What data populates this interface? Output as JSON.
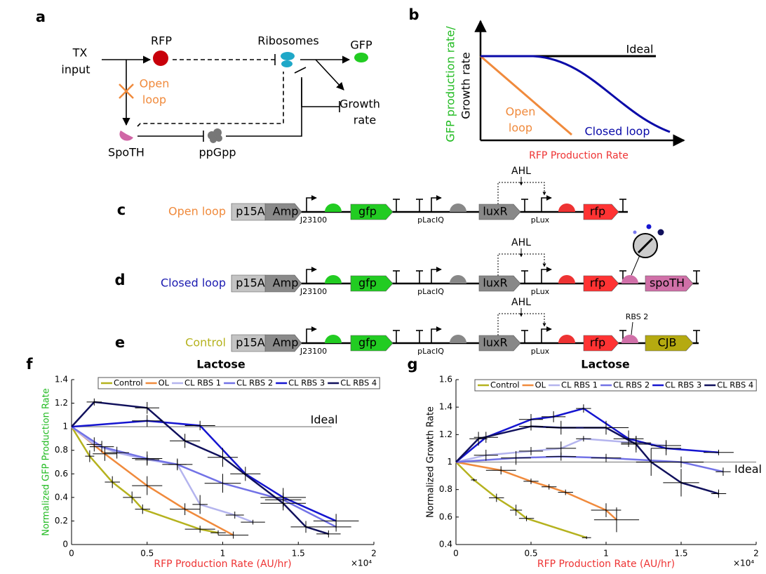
{
  "panel_labels": [
    "a",
    "b",
    "c",
    "d",
    "e",
    "f",
    "g"
  ],
  "diagram_a": {
    "input": [
      "TX",
      "input"
    ],
    "rfp": "RFP",
    "ribosomes": "Ribosomes",
    "gfp": "GFP",
    "open_loop": [
      "Open",
      "loop"
    ],
    "growth_rate": [
      "Growth",
      "rate"
    ],
    "spoth": "SpoTH",
    "ppgpp": "ppGpp"
  },
  "diagram_b": {
    "y_label": [
      "GFP production rate/",
      "Growth rate"
    ],
    "ideal": "Ideal",
    "open_loop": [
      "Open",
      "loop"
    ],
    "closed_loop": "Closed loop",
    "x_label": "RFP Production Rate"
  },
  "constructs": [
    {
      "label": "Open loop",
      "color": "#f08a3c",
      "p15a": "p15A",
      "amp": "Amp",
      "promoter1": "J23100",
      "gene1": "gfp",
      "promoter2": "pLacIQ",
      "gene2": "luxR",
      "inducer": "AHL",
      "promoter3": "pLux",
      "gene3": "rfp"
    },
    {
      "label": "Closed loop",
      "color": "#1a1ab0",
      "p15a": "p15A",
      "amp": "Amp",
      "promoter1": "J23100",
      "gene1": "gfp",
      "promoter2": "pLacIQ",
      "gene2": "luxR",
      "inducer": "AHL",
      "promoter3": "pLux",
      "gene3": "rfp",
      "gene4": "spoTH"
    },
    {
      "label": "Control",
      "color": "#b5b21e",
      "p15a": "p15A",
      "amp": "Amp",
      "promoter1": "J23100",
      "gene1": "gfp",
      "promoter2": "pLacIQ",
      "gene2": "luxR",
      "inducer": "AHL",
      "promoter3": "pLux",
      "gene3": "rfp",
      "rbs_label": "RBS 2",
      "gene4": "CJB"
    }
  ],
  "chart_data": [
    {
      "type": "line",
      "title": "Lactose",
      "x_label": "RFP Production Rate (AU/hr)",
      "y_label": "Normalized GFP Production Rate",
      "y_label_color": "#22bb22",
      "x_exponent": "×10⁴",
      "xlim": [
        0,
        2
      ],
      "xticks": [
        0,
        0.5,
        1,
        1.5,
        2
      ],
      "ylim": [
        0,
        1.4
      ],
      "yticks": [
        0,
        0.2,
        0.4,
        0.6,
        0.8,
        1,
        1.2,
        1.4
      ],
      "legend": "top",
      "ideal": {
        "label": "Ideal",
        "y": 1,
        "x_end": 1.72
      },
      "series": [
        {
          "name": "Control",
          "color": "#b5b21e",
          "x": [
            0,
            0.12,
            0.27,
            0.4,
            0.47,
            0.85,
            0.97
          ],
          "values": [
            1,
            0.75,
            0.53,
            0.4,
            0.3,
            0.13,
            0.1
          ],
          "xerr": [
            0,
            0.03,
            0.05,
            0.06,
            0.05,
            0.1,
            0.05
          ],
          "yerr": [
            0,
            0.05,
            0.05,
            0.05,
            0.04,
            0.03,
            0.02
          ]
        },
        {
          "name": "OL",
          "color": "#f08a3c",
          "x": [
            0,
            0.22,
            0.5,
            0.75,
            1.07
          ],
          "values": [
            1,
            0.77,
            0.5,
            0.3,
            0.08
          ],
          "xerr": [
            0,
            0.08,
            0.1,
            0.1,
            0.1
          ],
          "yerr": [
            0,
            0.06,
            0.08,
            0.05,
            0.03
          ]
        },
        {
          "name": "CL RBS 1",
          "color": "#b4b4ee",
          "x": [
            0,
            0.15,
            0.3,
            0.5,
            0.7,
            0.85,
            1.08,
            1.2
          ],
          "values": [
            1,
            0.85,
            0.78,
            0.72,
            0.68,
            0.34,
            0.25,
            0.19
          ],
          "xerr": [
            0,
            0.05,
            0.08,
            0.08,
            0.06,
            0.05,
            0.06,
            0.08
          ],
          "yerr": [
            0,
            0.06,
            0.05,
            0.04,
            0.05,
            0.08,
            0.03,
            0.02
          ]
        },
        {
          "name": "CL RBS 2",
          "color": "#7272e6",
          "x": [
            0,
            0.2,
            0.5,
            0.7,
            1,
            1.4,
            1.75
          ],
          "values": [
            1,
            0.83,
            0.73,
            0.68,
            0.52,
            0.38,
            0.15
          ],
          "xerr": [
            0,
            0.08,
            0.1,
            0.1,
            0.12,
            0.12,
            0.1
          ],
          "yerr": [
            0,
            0.05,
            0.06,
            0.04,
            0.08,
            0.06,
            0.04
          ]
        },
        {
          "name": "CL RBS 3",
          "color": "#1515d0",
          "x": [
            0,
            0.5,
            0.85,
            1.15,
            1.4,
            1.75
          ],
          "values": [
            1,
            1.05,
            1.01,
            0.6,
            0.4,
            0.2
          ],
          "xerr": [
            0,
            0.1,
            0.1,
            0.1,
            0.15,
            0.15
          ],
          "yerr": [
            0,
            0.05,
            0.04,
            0.06,
            0.08,
            0.06
          ]
        },
        {
          "name": "CL RBS 4",
          "color": "#10105c",
          "x": [
            0,
            0.15,
            0.5,
            0.75,
            1,
            1.4,
            1.55,
            1.7
          ],
          "values": [
            1,
            1.21,
            1.16,
            0.88,
            0.74,
            0.35,
            0.15,
            0.09
          ],
          "xerr": [
            0,
            0.05,
            0.08,
            0.1,
            0.1,
            0.15,
            0.1,
            0.08
          ],
          "yerr": [
            0,
            0.03,
            0.05,
            0.06,
            0.08,
            0.06,
            0.05,
            0.03
          ]
        }
      ]
    },
    {
      "type": "line",
      "title": "Lactose",
      "x_label": "RFP Production Rate (AU/hr)",
      "y_label": "Normalized Growth Rate",
      "y_label_color": "#000000",
      "x_exponent": "×10⁴",
      "xlim": [
        0,
        2
      ],
      "xticks": [
        0,
        0.5,
        1,
        1.5,
        2
      ],
      "ylim": [
        0.4,
        1.6
      ],
      "yticks": [
        0.4,
        0.6,
        0.8,
        1,
        1.2,
        1.4,
        1.6
      ],
      "legend": "top",
      "ideal": {
        "label": "Ideal",
        "y": 1,
        "x_end": 2
      },
      "series": [
        {
          "name": "Control",
          "color": "#b5b21e",
          "x": [
            0,
            0.12,
            0.27,
            0.4,
            0.47,
            0.87
          ],
          "values": [
            1,
            0.87,
            0.74,
            0.65,
            0.59,
            0.45
          ],
          "xerr": [
            0,
            0.02,
            0.05,
            0.04,
            0.05,
            0.03
          ],
          "yerr": [
            0,
            0.01,
            0.03,
            0.04,
            0.02,
            0.01
          ]
        },
        {
          "name": "OL",
          "color": "#f08a3c",
          "x": [
            0,
            0.3,
            0.5,
            0.62,
            0.73,
            1,
            1.07
          ],
          "values": [
            1,
            0.94,
            0.86,
            0.82,
            0.78,
            0.65,
            0.58
          ],
          "xerr": [
            0,
            0.1,
            0.05,
            0.05,
            0.05,
            0.1,
            0.15
          ],
          "yerr": [
            0,
            0.03,
            0.02,
            0.02,
            0.02,
            0.05,
            0.09
          ]
        },
        {
          "name": "CL RBS 1",
          "color": "#b4b4ee",
          "x": [
            0,
            0.2,
            0.5,
            0.7,
            0.85,
            1.2,
            1.4
          ],
          "values": [
            1,
            1.05,
            1.08,
            1.1,
            1.17,
            1.14,
            1.12
          ],
          "xerr": [
            0,
            0.08,
            0.08,
            0.1,
            0.05,
            0.1,
            0.1
          ],
          "yerr": [
            0,
            0.04,
            0.03,
            0.05,
            0.02,
            0.05,
            0.04
          ]
        },
        {
          "name": "CL RBS 2",
          "color": "#7272e6",
          "x": [
            0,
            0.4,
            0.7,
            1,
            1.5,
            1.78
          ],
          "values": [
            1,
            1.03,
            1.04,
            1.03,
            1,
            0.93
          ],
          "xerr": [
            0,
            0.1,
            0.1,
            0.1,
            0.15,
            0.05
          ],
          "yerr": [
            0,
            0.05,
            0.03,
            0.03,
            0.04,
            0.03
          ]
        },
        {
          "name": "CL RBS 3",
          "color": "#1515d0",
          "x": [
            0,
            0.2,
            0.5,
            0.65,
            0.85,
            1.15,
            1.4,
            1.75
          ],
          "values": [
            1,
            1.18,
            1.31,
            1.33,
            1.39,
            1.17,
            1.1,
            1.07
          ],
          "xerr": [
            0,
            0.08,
            0.08,
            0.08,
            0.05,
            0.1,
            0.1,
            0.1
          ],
          "yerr": [
            0,
            0.04,
            0.04,
            0.04,
            0.03,
            0.06,
            0.05,
            0.02
          ]
        },
        {
          "name": "CL RBS 4",
          "color": "#10105c",
          "x": [
            0,
            0.15,
            0.5,
            0.7,
            1,
            1.2,
            1.3,
            1.5,
            1.75
          ],
          "values": [
            1,
            1.17,
            1.26,
            1.25,
            1.25,
            1.13,
            1,
            0.85,
            0.77
          ],
          "xerr": [
            0,
            0.06,
            0.08,
            0.1,
            0.15,
            0.1,
            0.1,
            0.12,
            0.05
          ],
          "yerr": [
            0,
            0.05,
            0.03,
            0.05,
            0.05,
            0.06,
            0.1,
            0.1,
            0.03
          ]
        }
      ]
    }
  ]
}
